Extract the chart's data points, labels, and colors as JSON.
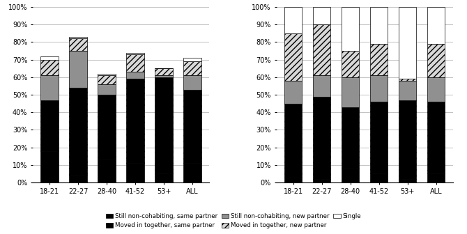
{
  "categories": [
    "18-21",
    "22-27",
    "28-40",
    "41-52",
    "53+",
    "ALL"
  ],
  "chart1": {
    "still_non_cohab_same": [
      18,
      4,
      13,
      11,
      5,
      11
    ],
    "moved_in_same": [
      29,
      50,
      37,
      48,
      55,
      42
    ],
    "still_non_cohab_new": [
      14,
      21,
      6,
      4,
      1,
      8
    ],
    "moved_in_new": [
      9,
      7,
      5,
      10,
      4,
      8
    ],
    "single": [
      2,
      1,
      1,
      1,
      0,
      2
    ]
  },
  "chart2": {
    "still_non_cohab_same": [
      3,
      2,
      8,
      5,
      2,
      5
    ],
    "moved_in_same": [
      42,
      47,
      35,
      41,
      45,
      41
    ],
    "still_non_cohab_new": [
      13,
      12,
      17,
      15,
      11,
      14
    ],
    "moved_in_new": [
      27,
      29,
      15,
      18,
      1,
      19
    ],
    "single": [
      15,
      10,
      25,
      21,
      41,
      21
    ]
  },
  "legend_labels": [
    "Still non-cohabiting, same partner",
    "Moved in together, same partner",
    "Still non-cohabiting, new partner",
    "Moved in together, new partner",
    "Single"
  ],
  "colors": [
    "#000000",
    "#000000",
    "#909090",
    "#d8d8d8",
    "#ffffff"
  ],
  "hatches": [
    "",
    "////",
    "",
    "////",
    ""
  ],
  "background": "#ffffff"
}
